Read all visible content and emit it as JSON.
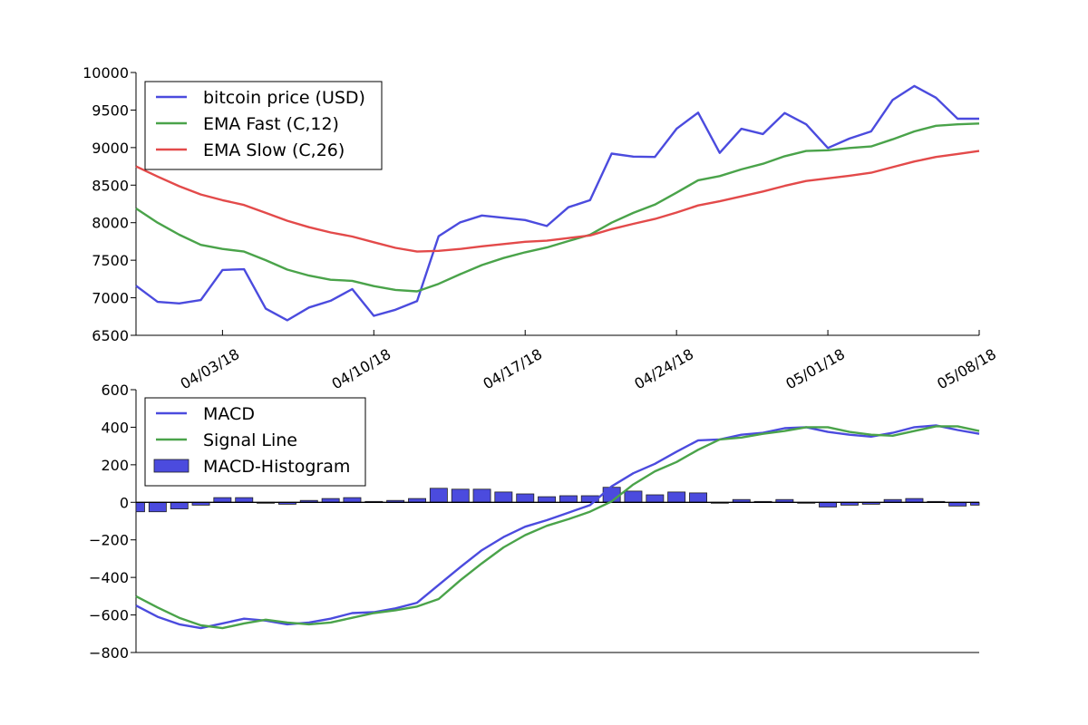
{
  "chart_data": [
    {
      "type": "line",
      "ylim": [
        6500,
        10000
      ],
      "yticks": [
        6500,
        7000,
        7500,
        8000,
        8500,
        9000,
        9500,
        10000
      ],
      "ytick_labels": [
        "6500",
        "7000",
        "7500",
        "8000",
        "8500",
        "9000",
        "9500",
        "10000"
      ],
      "xlim": [
        "2018-03-30",
        "2018-05-08"
      ],
      "xticks": [
        "2018-04-03",
        "2018-04-10",
        "2018-04-17",
        "2018-04-24",
        "2018-05-01",
        "2018-05-08"
      ],
      "xtick_labels": [
        "04/03/18",
        "04/10/18",
        "04/17/18",
        "04/24/18",
        "05/01/18",
        "05/08/18"
      ],
      "legend_position": "upper-left",
      "grid": false,
      "dates": [
        "2018-03-30",
        "2018-03-31",
        "2018-04-01",
        "2018-04-02",
        "2018-04-03",
        "2018-04-04",
        "2018-04-05",
        "2018-04-06",
        "2018-04-07",
        "2018-04-08",
        "2018-04-09",
        "2018-04-10",
        "2018-04-11",
        "2018-04-12",
        "2018-04-13",
        "2018-04-14",
        "2018-04-15",
        "2018-04-16",
        "2018-04-17",
        "2018-04-18",
        "2018-04-19",
        "2018-04-20",
        "2018-04-21",
        "2018-04-22",
        "2018-04-23",
        "2018-04-24",
        "2018-04-25",
        "2018-04-26",
        "2018-04-27",
        "2018-04-28",
        "2018-04-29",
        "2018-04-30",
        "2018-05-01",
        "2018-05-02",
        "2018-05-03",
        "2018-05-04",
        "2018-05-05",
        "2018-05-06",
        "2018-05-07",
        "2018-05-08"
      ],
      "series": [
        {
          "name": "bitcoin price (USD)",
          "color": "#4b4bde",
          "values": [
            7160,
            6945,
            6925,
            6970,
            7370,
            7380,
            6855,
            6700,
            6870,
            6960,
            7115,
            6760,
            6840,
            6955,
            7820,
            8005,
            8095,
            8065,
            8035,
            7955,
            8205,
            8300,
            8920,
            8880,
            8875,
            9250,
            9465,
            8930,
            9250,
            9180,
            9460,
            9310,
            8995,
            9120,
            9215,
            9635,
            9820,
            9665,
            9385,
            9385
          ]
        },
        {
          "name": "EMA Fast (C,12)",
          "color": "#4aa34a",
          "values": [
            8190,
            8000,
            7840,
            7705,
            7650,
            7615,
            7500,
            7375,
            7295,
            7240,
            7225,
            7155,
            7105,
            7085,
            7185,
            7315,
            7435,
            7530,
            7605,
            7670,
            7755,
            7840,
            8000,
            8130,
            8240,
            8400,
            8565,
            8620,
            8710,
            8785,
            8885,
            8955,
            8965,
            8995,
            9015,
            9110,
            9215,
            9290,
            9310,
            9320
          ]
        },
        {
          "name": "EMA Slow (C,26)",
          "color": "#e34a4a",
          "values": [
            8750,
            8615,
            8485,
            8375,
            8300,
            8235,
            8130,
            8025,
            7940,
            7870,
            7815,
            7740,
            7665,
            7615,
            7625,
            7650,
            7685,
            7715,
            7745,
            7760,
            7795,
            7830,
            7915,
            7985,
            8050,
            8135,
            8230,
            8285,
            8350,
            8415,
            8490,
            8555,
            8590,
            8625,
            8665,
            8740,
            8815,
            8875,
            8915,
            8955
          ]
        }
      ]
    },
    {
      "type": "line",
      "ylim": [
        -800,
        600
      ],
      "yticks": [
        -800,
        -600,
        -400,
        -200,
        0,
        200,
        400,
        600
      ],
      "ytick_labels": [
        "−800",
        "−600",
        "−400",
        "−200",
        "0",
        "200",
        "400",
        "600"
      ],
      "xlim": [
        "2018-03-30",
        "2018-05-08"
      ],
      "legend_position": "upper-left",
      "grid": false,
      "series": [
        {
          "name": "MACD",
          "color": "#4b4bde",
          "values": [
            -550,
            -610,
            -650,
            -670,
            -645,
            -620,
            -630,
            -650,
            -640,
            -620,
            -590,
            -585,
            -565,
            -535,
            -440,
            -345,
            -255,
            -185,
            -130,
            -95,
            -55,
            -15,
            85,
            155,
            205,
            270,
            330,
            335,
            360,
            370,
            395,
            400,
            375,
            360,
            350,
            370,
            400,
            410,
            385,
            365
          ]
        },
        {
          "name": "Signal Line",
          "color": "#4aa34a",
          "values": [
            -500,
            -560,
            -615,
            -655,
            -670,
            -645,
            -625,
            -640,
            -650,
            -640,
            -615,
            -590,
            -575,
            -555,
            -515,
            -415,
            -325,
            -240,
            -175,
            -125,
            -90,
            -50,
            5,
            95,
            165,
            215,
            280,
            335,
            345,
            365,
            380,
            400,
            400,
            375,
            360,
            355,
            380,
            405,
            405,
            380
          ]
        },
        {
          "name": "MACD-Histogram",
          "color": "#4b4bde",
          "kind": "bar",
          "values": [
            -50,
            -50,
            -35,
            -15,
            25,
            25,
            -5,
            -10,
            10,
            20,
            25,
            5,
            10,
            20,
            75,
            70,
            70,
            55,
            45,
            30,
            35,
            35,
            80,
            60,
            40,
            55,
            50,
            0,
            15,
            5,
            15,
            0,
            -25,
            -15,
            -10,
            15,
            20,
            5,
            -20,
            -15
          ]
        }
      ]
    }
  ]
}
